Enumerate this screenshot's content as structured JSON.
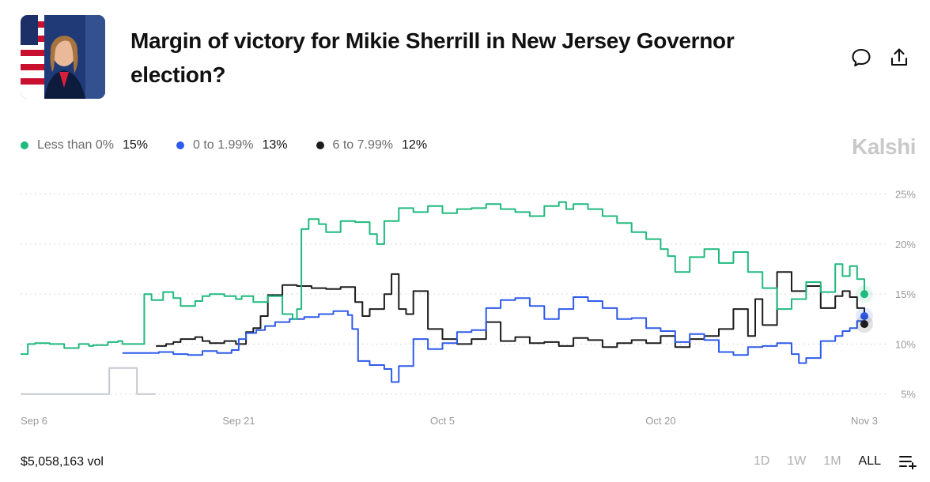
{
  "header": {
    "title": "Margin of victory for Mikie Sherrill in New Jersey Governor election?",
    "comment_icon": "comment-icon",
    "share_icon": "share-icon",
    "avatar": "candidate-portrait"
  },
  "brand": "Kalshi",
  "legend": [
    {
      "name": "Less than 0%",
      "value": "15%",
      "color": "#1fba7d"
    },
    {
      "name": "0 to 1.99%",
      "value": "13%",
      "color": "#2f5bea"
    },
    {
      "name": "6 to 7.99%",
      "value": "12%",
      "color": "#1c1c1c"
    }
  ],
  "footer": {
    "volume": "$5,058,163 vol",
    "ranges": [
      "1D",
      "1W",
      "1M",
      "ALL"
    ],
    "active_range": "ALL",
    "list_icon": "list-add-icon"
  },
  "chart_data": {
    "type": "line",
    "title": "",
    "xlabel": "",
    "ylabel": "",
    "ylim": [
      4.5,
      26
    ],
    "y_ticks": [
      5,
      10,
      15,
      20,
      25
    ],
    "y_tick_labels": [
      "5%",
      "10%",
      "15%",
      "20%",
      "25%"
    ],
    "x_range_days": [
      0,
      58
    ],
    "x_ticks": [
      0,
      15,
      29,
      44,
      58
    ],
    "x_tick_labels": [
      "Sep 6",
      "Sep 21",
      "Oct 5",
      "Oct 20",
      "Nov 3"
    ],
    "series": [
      {
        "name": "Less than 0%",
        "color": "#1fba7d",
        "x": [
          0,
          0.5,
          1,
          2,
          3,
          4,
          4.7,
          5,
          6,
          6.7,
          7,
          8,
          8.5,
          9,
          9.8,
          10.5,
          11,
          12,
          12.5,
          13,
          14,
          14.8,
          15.2,
          16,
          17,
          18,
          18.7,
          19,
          19.3,
          19.8,
          20.5,
          21,
          22,
          23,
          24,
          24.5,
          25,
          26,
          27,
          28,
          29,
          30,
          31,
          32,
          33,
          34,
          35,
          36,
          37,
          37.5,
          38,
          39,
          40,
          41,
          42,
          43,
          44,
          44.5,
          45,
          46,
          47,
          48,
          49,
          50,
          51,
          52,
          53,
          54,
          55,
          56,
          56.5,
          57,
          57.5,
          58
        ],
        "y": [
          9,
          10,
          10.1,
          10,
          9.6,
          10,
          9.8,
          9.9,
          10.2,
          10.3,
          10,
          10,
          15,
          14.4,
          15.2,
          14.6,
          13.8,
          14.3,
          14.8,
          15,
          14.8,
          14.5,
          14.8,
          14.2,
          14.8,
          13,
          12.5,
          13.5,
          21.5,
          22.5,
          22,
          21.2,
          22.3,
          22.2,
          21,
          20,
          22.3,
          23.6,
          23.2,
          23.8,
          23.1,
          23.5,
          23.6,
          24,
          23.5,
          23.2,
          22.8,
          23.8,
          24.2,
          23.5,
          24,
          23.5,
          22.8,
          22.1,
          21.2,
          20.5,
          19.5,
          18.8,
          17.2,
          18.7,
          19.5,
          18.1,
          19.2,
          17.2,
          15.6,
          13.5,
          14.5,
          16.2,
          15.2,
          18,
          16.8,
          17.8,
          16.5,
          15
        ]
      },
      {
        "name": "0 to 1.99%",
        "color": "#2f5bea",
        "x": [
          7,
          9,
          9.5,
          10.5,
          11.5,
          12.5,
          13.5,
          14.5,
          15,
          15.5,
          16.2,
          16.8,
          17.5,
          18.5,
          19.5,
          20.5,
          21.5,
          22.5,
          22.8,
          23.2,
          24,
          25,
          25.5,
          26,
          27,
          28,
          29,
          30,
          31,
          32,
          33,
          34,
          35,
          36,
          37,
          38,
          39,
          40,
          41,
          42,
          43,
          44,
          45,
          46,
          47,
          48,
          49,
          50,
          51,
          52,
          53,
          53.5,
          54,
          55,
          56,
          56.5,
          57,
          57.5,
          58
        ],
        "y": [
          9.1,
          9.1,
          9.2,
          9.0,
          8.9,
          9.3,
          9.1,
          9.4,
          10.5,
          11.1,
          11.4,
          11.8,
          12.2,
          12.5,
          12.7,
          13.0,
          13.3,
          12.9,
          11.5,
          8.3,
          7.9,
          7.5,
          6.2,
          7.8,
          10.5,
          9.5,
          10.1,
          11.2,
          11.4,
          13.6,
          14.4,
          14.6,
          13.8,
          12.5,
          13.5,
          14.7,
          14.3,
          13.6,
          12.5,
          12.6,
          11.6,
          11.3,
          10.2,
          11.0,
          10.4,
          9.2,
          8.9,
          9.7,
          9.8,
          10.1,
          9.0,
          8.1,
          8.6,
          10.3,
          10.8,
          11.3,
          11.6,
          12.3,
          12.8
        ]
      },
      {
        "name": "6 to 7.99%",
        "color": "#1c1c1c",
        "x": [
          9.3,
          10,
          10.5,
          11,
          12,
          12.5,
          13,
          14,
          14.8,
          15.5,
          16,
          16.5,
          17,
          18,
          19,
          20,
          21,
          22,
          23,
          23.5,
          24,
          25,
          25.5,
          26,
          26.5,
          27,
          28,
          29,
          30,
          31,
          32,
          33,
          34,
          35,
          36,
          37,
          38,
          39,
          40,
          41,
          42,
          43,
          44,
          45,
          46,
          47,
          48,
          49,
          50,
          50.5,
          51,
          52,
          53,
          54,
          55,
          56,
          56.5,
          57,
          57.5,
          58
        ],
        "y": [
          9.8,
          10.0,
          10.2,
          10.5,
          10.7,
          10.3,
          10.1,
          10.3,
          10.0,
          11.2,
          11.6,
          12.8,
          14.9,
          15.9,
          15.8,
          15.6,
          15.5,
          15.7,
          14.2,
          12.8,
          13.5,
          15.0,
          17.0,
          13.5,
          13.0,
          15.3,
          11.5,
          10.5,
          10.0,
          10.5,
          12.2,
          10.3,
          10.7,
          10.1,
          10.2,
          9.8,
          10.6,
          10.4,
          9.7,
          10.1,
          10.4,
          10.1,
          10.8,
          9.7,
          10.5,
          10.8,
          11.5,
          13.5,
          10.8,
          14.5,
          11.9,
          17.2,
          15.3,
          15.8,
          13.6,
          14.8,
          15.3,
          14.7,
          13.6,
          12
        ]
      },
      {
        "name": "baseline",
        "color": "#c4c8d0",
        "x": [
          0,
          6,
          6.1,
          7.9,
          8,
          9.3
        ],
        "y": [
          5,
          5,
          7.6,
          7.6,
          5,
          5
        ]
      }
    ]
  }
}
